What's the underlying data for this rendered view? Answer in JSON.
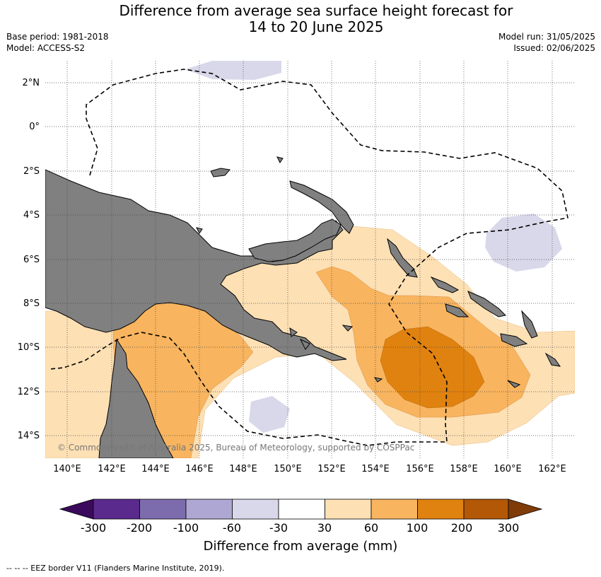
{
  "header": {
    "title_line1": "Difference from average sea surface height forecast for",
    "title_line2": "14 to 20 June 2025",
    "base_period": "Base period: 1981-2018",
    "model": "Model: ACCESS-S2",
    "model_run": "Model run: 31/05/2025",
    "issued": "Issued: 02/06/2025"
  },
  "map": {
    "region": "Papua New Guinea",
    "latitude_labels": [
      "2°N",
      "0°",
      "2°S",
      "4°S",
      "6°S",
      "8°S",
      "10°S",
      "12°S",
      "14°S"
    ],
    "longitude_labels": [
      "140°E",
      "142°E",
      "144°E",
      "146°E",
      "148°E",
      "150°E",
      "152°E",
      "154°E",
      "156°E",
      "158°E",
      "160°E",
      "162°E"
    ],
    "copyright": "© Commonwealth of Australia 2025, Bureau of Meteorology, supported by COSPPac",
    "land_color": "#808080",
    "eez_border": "dashed"
  },
  "colorbar": {
    "title": "Difference from average (mm)",
    "tick_labels": [
      "-300",
      "-200",
      "-100",
      "-60",
      "-30",
      "30",
      "60",
      "100",
      "200",
      "300"
    ],
    "colors": [
      "#3b0a5c",
      "#5a2a8c",
      "#7d6cad",
      "#afa7d3",
      "#d8d8ea",
      "#ffffff",
      "#fde0b4",
      "#f8b45e",
      "#e0820f",
      "#b35806",
      "#7f3b08"
    ]
  },
  "footer": {
    "legend_note": "--  --  -- EEZ border V11 (Flanders Marine Institute, 2019)."
  }
}
